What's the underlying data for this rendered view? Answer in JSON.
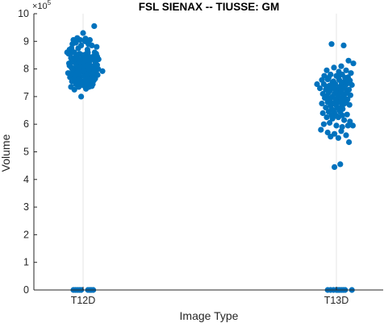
{
  "chart_data": {
    "type": "scatter",
    "title": "FSL SIENAX -- TIUSSE: GM",
    "xlabel": "Image Type",
    "ylabel": "Volume",
    "exponent_label": "×10",
    "exponent_power": "5",
    "categories": [
      "T12D",
      "T13D"
    ],
    "ylim": [
      0,
      10
    ],
    "yticks": [
      "0",
      "1",
      "2",
      "3",
      "4",
      "5",
      "6",
      "7",
      "8",
      "9",
      "10"
    ],
    "y_units_multiplier": 100000,
    "grid": "vertical at categories",
    "marker_color": "#0072BD",
    "series": [
      {
        "category": "T12D",
        "points": [
          [
            -0.2,
            9.05
          ],
          [
            -0.12,
            9.12
          ],
          [
            0.0,
            9.3
          ],
          [
            0.05,
            9.1
          ],
          [
            0.14,
            9.05
          ],
          [
            0.23,
            9.55
          ],
          [
            -0.28,
            8.7
          ],
          [
            -0.22,
            8.9
          ],
          [
            -0.1,
            8.75
          ],
          [
            -0.04,
            8.85
          ],
          [
            0.04,
            9.0
          ],
          [
            0.09,
            8.7
          ],
          [
            0.18,
            8.85
          ],
          [
            0.24,
            8.6
          ],
          [
            0.29,
            8.45
          ],
          [
            -0.3,
            8.55
          ],
          [
            -0.18,
            8.6
          ],
          [
            -0.07,
            8.55
          ],
          [
            0.07,
            8.55
          ],
          [
            0.12,
            8.45
          ],
          [
            -0.25,
            8.4
          ],
          [
            -0.14,
            8.35
          ],
          [
            0.02,
            8.4
          ],
          [
            0.21,
            8.45
          ],
          [
            -0.29,
            8.2
          ],
          [
            -0.21,
            8.25
          ],
          [
            -0.1,
            8.2
          ],
          [
            -0.02,
            8.25
          ],
          [
            0.06,
            8.2
          ],
          [
            0.13,
            8.25
          ],
          [
            0.26,
            8.2
          ],
          [
            -0.24,
            8.05
          ],
          [
            -0.17,
            8.0
          ],
          [
            -0.08,
            8.05
          ],
          [
            0.0,
            8.0
          ],
          [
            0.09,
            8.05
          ],
          [
            0.17,
            8.0
          ],
          [
            0.22,
            8.1
          ],
          [
            0.31,
            8.0
          ],
          [
            -0.31,
            7.85
          ],
          [
            -0.2,
            7.9
          ],
          [
            -0.12,
            7.85
          ],
          [
            -0.03,
            7.9
          ],
          [
            0.05,
            7.85
          ],
          [
            0.14,
            7.9
          ],
          [
            0.27,
            7.85
          ],
          [
            0.4,
            7.92
          ],
          [
            -0.27,
            7.7
          ],
          [
            -0.16,
            7.75
          ],
          [
            -0.06,
            7.7
          ],
          [
            0.03,
            7.75
          ],
          [
            0.11,
            7.7
          ],
          [
            0.19,
            7.75
          ],
          [
            0.25,
            7.65
          ],
          [
            -0.23,
            7.55
          ],
          [
            -0.13,
            7.5
          ],
          [
            -0.02,
            7.55
          ],
          [
            0.07,
            7.5
          ],
          [
            0.16,
            7.55
          ],
          [
            -0.09,
            7.35
          ],
          [
            0.01,
            7.4
          ],
          [
            0.12,
            7.35
          ],
          [
            -0.25,
            7.35
          ],
          [
            -0.04,
            7.0
          ],
          [
            0.2,
            7.45
          ],
          [
            -0.24,
            8.75
          ],
          [
            -0.15,
            8.95
          ],
          [
            -0.06,
            9.05
          ],
          [
            0.11,
            8.9
          ],
          [
            0.28,
            8.8
          ],
          [
            -0.33,
            8.6
          ],
          [
            -0.26,
            8.55
          ],
          [
            -0.12,
            8.5
          ],
          [
            0.0,
            8.5
          ],
          [
            0.1,
            8.6
          ],
          [
            0.27,
            8.55
          ],
          [
            -0.23,
            8.3
          ],
          [
            -0.16,
            8.42
          ],
          [
            -0.06,
            8.35
          ],
          [
            0.05,
            8.32
          ],
          [
            0.15,
            8.38
          ],
          [
            0.24,
            8.3
          ],
          [
            0.32,
            8.35
          ],
          [
            -0.28,
            8.12
          ],
          [
            -0.14,
            8.15
          ],
          [
            -0.05,
            8.1
          ],
          [
            0.03,
            8.12
          ],
          [
            0.11,
            8.14
          ],
          [
            0.19,
            8.1
          ],
          [
            0.29,
            8.14
          ],
          [
            -0.22,
            7.98
          ],
          [
            -0.1,
            7.97
          ],
          [
            0.02,
            7.95
          ],
          [
            0.12,
            7.98
          ],
          [
            0.24,
            7.96
          ],
          [
            -0.25,
            7.8
          ],
          [
            -0.08,
            7.8
          ],
          [
            0.08,
            7.8
          ],
          [
            0.2,
            7.82
          ],
          [
            0.3,
            7.78
          ],
          [
            -0.19,
            7.62
          ],
          [
            -0.1,
            7.6
          ],
          [
            0.05,
            7.62
          ],
          [
            0.14,
            7.63
          ],
          [
            0.22,
            7.58
          ],
          [
            -0.15,
            7.45
          ],
          [
            -0.05,
            7.45
          ],
          [
            0.09,
            7.42
          ],
          [
            0.18,
            7.38
          ],
          [
            -0.18,
            7.25
          ],
          [
            0.06,
            7.28
          ],
          [
            -0.2,
            0.0
          ],
          [
            -0.16,
            0.0
          ],
          [
            -0.12,
            0.0
          ],
          [
            -0.08,
            0.0
          ],
          [
            -0.04,
            0.0
          ],
          [
            0.1,
            0.0
          ],
          [
            0.14,
            0.0
          ],
          [
            0.17,
            0.0
          ],
          [
            0.21,
            0.0
          ]
        ]
      },
      {
        "category": "T13D",
        "points": [
          [
            -0.1,
            8.9
          ],
          [
            0.15,
            8.85
          ],
          [
            0.25,
            8.3
          ],
          [
            0.35,
            8.2
          ],
          [
            -0.05,
            8.05
          ],
          [
            0.1,
            8.1
          ],
          [
            -0.2,
            7.95
          ],
          [
            0.05,
            7.9
          ],
          [
            0.2,
            7.95
          ],
          [
            0.3,
            7.85
          ],
          [
            -0.25,
            7.75
          ],
          [
            -0.12,
            7.8
          ],
          [
            0.0,
            7.75
          ],
          [
            0.12,
            7.8
          ],
          [
            0.24,
            7.7
          ],
          [
            -0.3,
            7.6
          ],
          [
            -0.18,
            7.62
          ],
          [
            -0.06,
            7.55
          ],
          [
            0.06,
            7.6
          ],
          [
            0.17,
            7.55
          ],
          [
            0.28,
            7.58
          ],
          [
            -0.4,
            7.45
          ],
          [
            -0.26,
            7.45
          ],
          [
            -0.14,
            7.4
          ],
          [
            -0.02,
            7.45
          ],
          [
            0.1,
            7.4
          ],
          [
            0.21,
            7.45
          ],
          [
            0.32,
            7.42
          ],
          [
            -0.34,
            7.3
          ],
          [
            -0.22,
            7.25
          ],
          [
            -0.1,
            7.3
          ],
          [
            0.02,
            7.25
          ],
          [
            0.14,
            7.3
          ],
          [
            0.26,
            7.25
          ],
          [
            -0.28,
            7.1
          ],
          [
            -0.16,
            7.15
          ],
          [
            -0.04,
            7.1
          ],
          [
            0.08,
            7.15
          ],
          [
            0.19,
            7.1
          ],
          [
            0.29,
            7.05
          ],
          [
            -0.24,
            6.95
          ],
          [
            -0.12,
            6.95
          ],
          [
            0.0,
            6.9
          ],
          [
            0.12,
            6.95
          ],
          [
            0.23,
            6.9
          ],
          [
            -0.3,
            6.75
          ],
          [
            -0.18,
            6.8
          ],
          [
            -0.06,
            6.75
          ],
          [
            0.06,
            6.8
          ],
          [
            0.17,
            6.75
          ],
          [
            0.27,
            6.7
          ],
          [
            -0.22,
            6.6
          ],
          [
            -0.1,
            6.55
          ],
          [
            0.02,
            6.6
          ],
          [
            0.13,
            6.55
          ],
          [
            -0.28,
            6.4
          ],
          [
            -0.16,
            6.45
          ],
          [
            -0.04,
            6.4
          ],
          [
            0.08,
            6.45
          ],
          [
            0.22,
            6.35
          ],
          [
            -0.2,
            6.25
          ],
          [
            -0.08,
            6.2
          ],
          [
            0.04,
            6.25
          ],
          [
            0.16,
            6.15
          ],
          [
            0.28,
            6.1
          ],
          [
            -0.26,
            6.0
          ],
          [
            -0.14,
            6.05
          ],
          [
            0.0,
            5.95
          ],
          [
            0.12,
            5.9
          ],
          [
            0.24,
            5.95
          ],
          [
            0.34,
            5.95
          ],
          [
            -0.32,
            5.8
          ],
          [
            -0.18,
            5.7
          ],
          [
            -0.04,
            5.65
          ],
          [
            0.1,
            5.75
          ],
          [
            0.2,
            5.6
          ],
          [
            -0.12,
            5.55
          ],
          [
            0.04,
            5.5
          ],
          [
            0.26,
            5.35
          ],
          [
            -0.04,
            4.45
          ],
          [
            0.08,
            4.55
          ],
          [
            -0.16,
            7.68
          ],
          [
            0.04,
            7.7
          ],
          [
            0.18,
            7.68
          ],
          [
            -0.08,
            7.52
          ],
          [
            0.11,
            7.5
          ],
          [
            0.24,
            7.52
          ],
          [
            -0.2,
            7.36
          ],
          [
            -0.06,
            7.35
          ],
          [
            0.06,
            7.34
          ],
          [
            0.17,
            7.36
          ],
          [
            -0.14,
            7.2
          ],
          [
            -0.02,
            7.18
          ],
          [
            0.1,
            7.2
          ],
          [
            0.22,
            7.18
          ],
          [
            -0.2,
            7.02
          ],
          [
            -0.08,
            7.0
          ],
          [
            0.04,
            7.02
          ],
          [
            0.15,
            7.0
          ],
          [
            -0.14,
            6.85
          ],
          [
            -0.02,
            6.85
          ],
          [
            0.1,
            6.85
          ],
          [
            0.2,
            6.82
          ],
          [
            -0.12,
            6.68
          ],
          [
            0.0,
            6.68
          ],
          [
            0.12,
            6.66
          ],
          [
            -0.06,
            6.5
          ],
          [
            0.06,
            6.5
          ],
          [
            -0.1,
            6.33
          ],
          [
            0.0,
            6.3
          ],
          [
            0.12,
            6.32
          ],
          [
            -0.18,
            0.0
          ],
          [
            -0.12,
            0.0
          ],
          [
            -0.06,
            0.0
          ],
          [
            0.0,
            0.0
          ],
          [
            0.03,
            0.0
          ],
          [
            0.06,
            0.0
          ],
          [
            0.1,
            0.0
          ],
          [
            0.14,
            0.0
          ],
          [
            0.18,
            0.0
          ],
          [
            0.32,
            0.0
          ]
        ]
      }
    ]
  }
}
